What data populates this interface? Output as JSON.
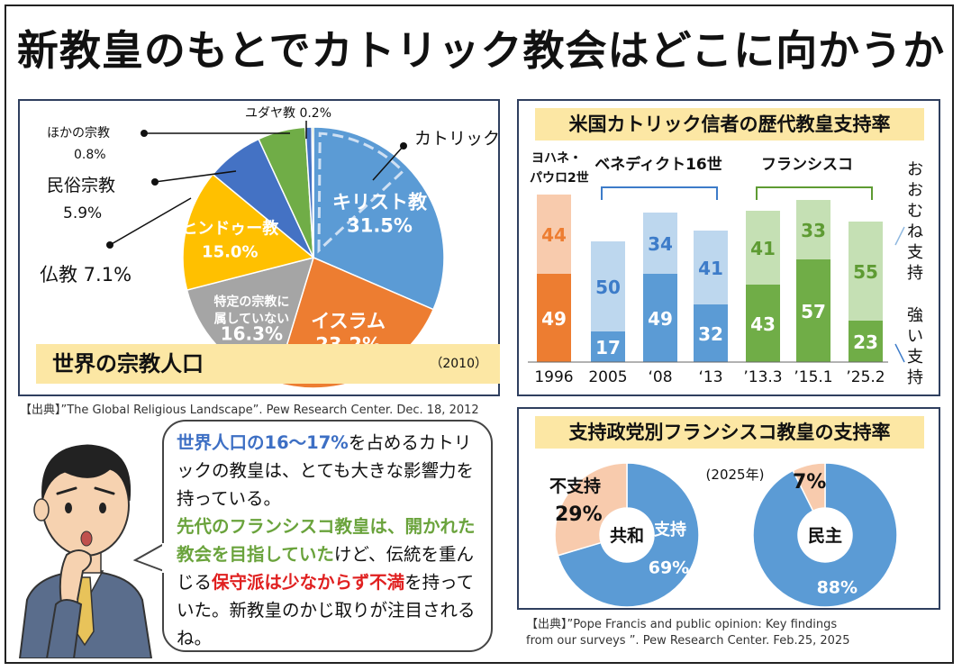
{
  "main_title": "新教皇のもとでカトリック教会はどこに向かうか",
  "pie_panel": {
    "title": "世界の宗教人口",
    "year": "（2010）",
    "source": "【出典】”The Global Religious Landscape”. Pew Research Center. Dec. 18, 2012",
    "group_label": "カトリック"
  },
  "bar_panel": {
    "title": "米国カトリック信者の歴代教皇支持率",
    "popes": [
      "ヨハネ・",
      "パウロ2世",
      "ベネディクト16世",
      "フランシスコ"
    ],
    "legend_generally": "おおむね支持",
    "legend_strongly": "強い支持"
  },
  "donut_panel": {
    "title": "支持政党別フランシスコ教皇の支持率",
    "year": "(2025年)",
    "source_line1": "【出典】”Pope Francis and public opinion: Key findings",
    "source_line2": "from our surveys ”. Pew Research Center. Feb.25, 2025"
  },
  "bubble": {
    "p1": "世界人口の16～17%",
    "p2": "を占めるカトリックの教皇は、とても大きな影響力を持っている。",
    "p3": "先代のフランシスコ教皇は、開かれた教会を目指していた",
    "p4": "けど、伝統を重んじる",
    "p5": "保守派は少なからず不満",
    "p6": "を持っていた。新教皇のかじ取りが注目されるね。"
  },
  "chart_data": [
    {
      "type": "pie",
      "title": "世界の宗教人口",
      "labels": [
        "キリスト教",
        "イスラム",
        "特定の宗教に属していない",
        "ヒンドゥー教",
        "仏教",
        "民俗宗教",
        "ほかの宗教",
        "ユダヤ教"
      ],
      "values": [
        31.5,
        23.2,
        16.3,
        15.0,
        7.1,
        5.9,
        0.8,
        0.2
      ],
      "display_values": [
        "31.5%",
        "23.2%",
        "16.3%",
        "15.0%",
        "7.1%",
        "5.9%",
        "0.8%",
        "0.2%"
      ],
      "outside_labels": [
        "仏教 7.1%",
        "民俗宗教",
        "5.9%",
        "ほかの宗教",
        "0.8%",
        "ユダヤ教 0.2%"
      ],
      "colors": [
        "#5b9bd5",
        "#ed7d31",
        "#a5a5a5",
        "#ffc000",
        "#4472c4",
        "#70ad47",
        "#4472c4",
        "#70ad47"
      ]
    },
    {
      "type": "bar",
      "stacked": true,
      "title": "米国カトリック信者の歴代教皇支持率",
      "categories": [
        "1996",
        "2005",
        "‘08",
        "‘13",
        "’13.3",
        "’15.1",
        "’25.2"
      ],
      "series": [
        {
          "name": "強い支持",
          "values": [
            49,
            17,
            49,
            32,
            43,
            57,
            23
          ]
        },
        {
          "name": "おおむね支持",
          "values": [
            44,
            50,
            34,
            41,
            41,
            33,
            55
          ]
        }
      ],
      "pope_groups": [
        {
          "name": "ヨハネ・パウロ2世",
          "categories": [
            "1996"
          ]
        },
        {
          "name": "ベネディクト16世",
          "categories": [
            "2005",
            "‘08",
            "‘13"
          ]
        },
        {
          "name": "フランシスコ",
          "categories": [
            "’13.3",
            "’15.1",
            "’25.2"
          ]
        }
      ],
      "colors": {
        "strong": [
          "#ed7d31",
          "#5b9bd5",
          "#5b9bd5",
          "#5b9bd5",
          "#70ad47",
          "#70ad47",
          "#70ad47"
        ],
        "general": [
          "#f8cbad",
          "#bdd7ee",
          "#bdd7ee",
          "#bdd7ee",
          "#c5e0b4",
          "#c5e0b4",
          "#c5e0b4"
        ]
      }
    },
    {
      "type": "pie",
      "donut": true,
      "center_label": "共和",
      "labels": [
        "支持",
        "不支持"
      ],
      "values": [
        69,
        29
      ],
      "display_values": [
        "69%",
        "29%"
      ],
      "colors": [
        "#5b9bd5",
        "#f8cbad"
      ]
    },
    {
      "type": "pie",
      "donut": true,
      "center_label": "民主",
      "labels": [
        "支持",
        "不支持"
      ],
      "values": [
        88,
        7
      ],
      "display_values": [
        "88%",
        "7%"
      ],
      "colors": [
        "#5b9bd5",
        "#f8cbad"
      ]
    }
  ]
}
